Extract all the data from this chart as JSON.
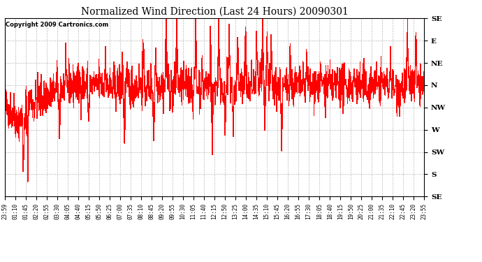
{
  "title": "Normalized Wind Direction (Last 24 Hours) 20090301",
  "copyright_text": "Copyright 2009 Cartronics.com",
  "line_color": "#ff0000",
  "bg_color": "#ffffff",
  "grid_color": "#aaaaaa",
  "ytick_labels": [
    "SE",
    "E",
    "NE",
    "N",
    "NW",
    "W",
    "SW",
    "S",
    "SE"
  ],
  "ytick_values": [
    1.0,
    0.875,
    0.75,
    0.625,
    0.5,
    0.375,
    0.25,
    0.125,
    0.0
  ],
  "xtick_labels": [
    "23:59",
    "01:10",
    "01:45",
    "02:20",
    "02:55",
    "03:30",
    "04:05",
    "04:40",
    "05:15",
    "05:50",
    "06:25",
    "07:00",
    "07:35",
    "08:10",
    "08:45",
    "09:20",
    "09:55",
    "10:30",
    "11:05",
    "11:40",
    "12:15",
    "12:50",
    "13:25",
    "14:00",
    "14:35",
    "15:10",
    "15:45",
    "16:20",
    "16:55",
    "17:30",
    "18:05",
    "18:40",
    "19:15",
    "19:50",
    "20:25",
    "21:00",
    "21:35",
    "22:10",
    "22:45",
    "23:20",
    "23:55"
  ],
  "seed": 42,
  "n_points": 1440,
  "figwidth": 6.9,
  "figheight": 3.75,
  "dpi": 100
}
